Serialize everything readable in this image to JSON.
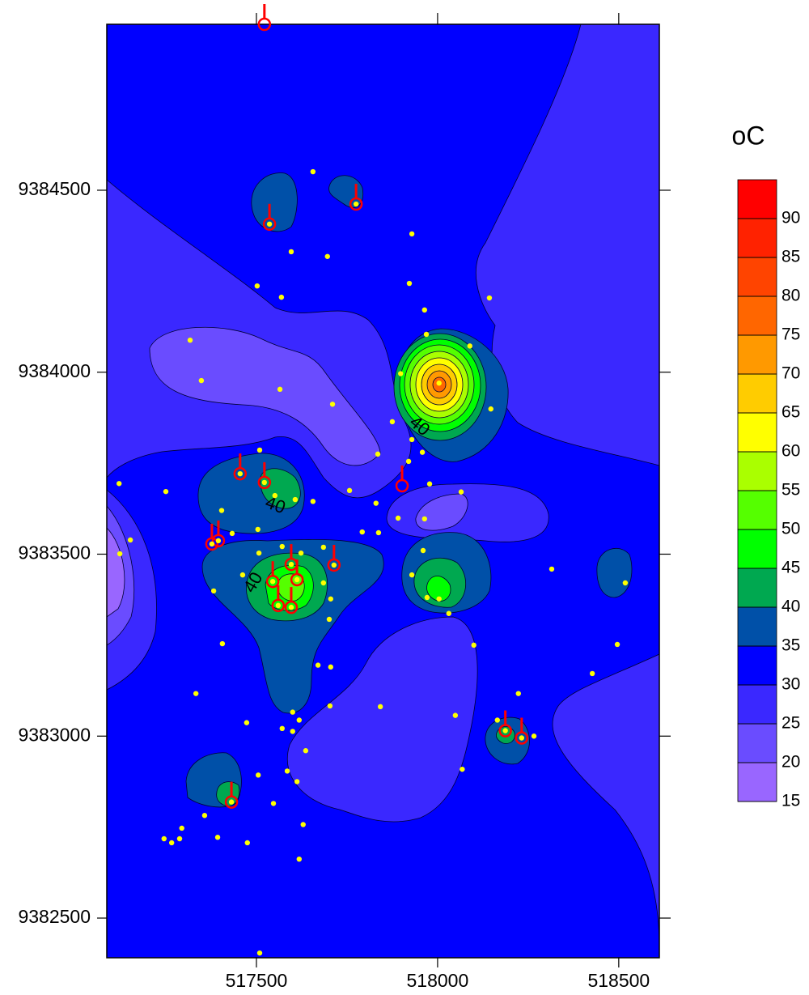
{
  "chart_data": {
    "type": "contour",
    "xlim": [
      517087,
      518612
    ],
    "ylim": [
      9382391,
      9384956
    ],
    "xticks": [
      517500,
      518000,
      518500
    ],
    "yticks": [
      9382500,
      9383000,
      9383500,
      9384000,
      9384500
    ],
    "colorbar": {
      "title": "oC",
      "levels": [
        15,
        20,
        25,
        30,
        35,
        40,
        45,
        50,
        55,
        60,
        65,
        70,
        75,
        80,
        85,
        90,
        95
      ],
      "colors": [
        "#9966ff",
        "#6a4cff",
        "#3a28ff",
        "#0000ff",
        "#0050a8",
        "#00a850",
        "#00ff00",
        "#55ff00",
        "#aaff00",
        "#ffff00",
        "#ffcc00",
        "#ff9900",
        "#ff6600",
        "#ff4400",
        "#ff2200",
        "#ff0000"
      ],
      "ticks": [
        15,
        20,
        25,
        30,
        35,
        40,
        45,
        50,
        55,
        60,
        65,
        70,
        75,
        80,
        85,
        90
      ]
    },
    "contour_labels": [
      "40",
      "40",
      "40"
    ],
    "points": {
      "color": "#ffff00",
      "x": [
        517656,
        517536,
        517775,
        517596,
        517696,
        517502,
        517569,
        517929,
        517922,
        517964,
        518143,
        517969,
        517317,
        517348,
        517565,
        517710,
        517898,
        518004,
        518089,
        518147,
        517875,
        517929,
        517958,
        517509,
        517455,
        517522,
        517121,
        517250,
        517920,
        517835,
        517757,
        517551,
        517607,
        517656,
        517404,
        517830,
        517978,
        518065,
        517964,
        517152,
        517123,
        517377,
        517395,
        517433,
        517504,
        517792,
        517837,
        517891,
        517960,
        517714,
        517685,
        517685,
        517571,
        517623,
        517507,
        517462,
        517545,
        517612,
        517560,
        517596,
        517596,
        517929,
        517971,
        518004,
        518031,
        518315,
        518518,
        517382,
        517406,
        517705,
        517701,
        518100,
        518496,
        518427,
        517333,
        517670,
        517705,
        517703,
        517842,
        517600,
        517618,
        517571,
        517600,
        517473,
        518049,
        518223,
        518165,
        518187,
        518232,
        518266,
        517636,
        517585,
        517505,
        517612,
        518068,
        517431,
        517547,
        517357,
        517629,
        517245,
        517294,
        517288,
        517266,
        517393,
        517475,
        517618,
        517509
      ],
      "y": [
        9384551,
        9384407,
        9384462,
        9384331,
        9384318,
        9384237,
        9384206,
        9384380,
        9384244,
        9384171,
        9384204,
        9384104,
        9384088,
        9383977,
        9383953,
        9383912,
        9383996,
        9383970,
        9384072,
        9383899,
        9383864,
        9383815,
        9383780,
        9383786,
        9383721,
        9383697,
        9383694,
        9383672,
        9383755,
        9383775,
        9383675,
        9383661,
        9383650,
        9383645,
        9383620,
        9383640,
        9383693,
        9383671,
        9383597,
        9383539,
        9383501,
        9383528,
        9383537,
        9383557,
        9383568,
        9383561,
        9383559,
        9383599,
        9383510,
        9383470,
        9383519,
        9383421,
        9383521,
        9383503,
        9383503,
        9383443,
        9383425,
        9383430,
        9383359,
        9383354,
        9383472,
        9383443,
        9383381,
        9383377,
        9383337,
        9383459,
        9383421,
        9383399,
        9383254,
        9383377,
        9383321,
        9383250,
        9383252,
        9383172,
        9383117,
        9383195,
        9383190,
        9383083,
        9383081,
        9383066,
        9383044,
        9383021,
        9383013,
        9383037,
        9383057,
        9383117,
        9383044,
        9383015,
        9382995,
        9383000,
        9382960,
        9382904,
        9382893,
        9382875,
        9382909,
        9382819,
        9382815,
        9382782,
        9382757,
        9382718,
        9382747,
        9382718,
        9382707,
        9382722,
        9382707,
        9382662,
        9382404
      ]
    },
    "wells": {
      "color": "#ff0000",
      "x": [
        517522,
        517536,
        517775,
        517455,
        517522,
        517902,
        517377,
        517395,
        517714,
        517545,
        517612,
        517596,
        517560,
        517596,
        518187,
        518232,
        517431
      ],
      "y": [
        9384956,
        9384407,
        9384462,
        9383721,
        9383697,
        9383688,
        9383528,
        9383537,
        9383470,
        9383425,
        9383430,
        9383472,
        9383359,
        9383354,
        9383015,
        9382995,
        9382819
      ]
    }
  }
}
